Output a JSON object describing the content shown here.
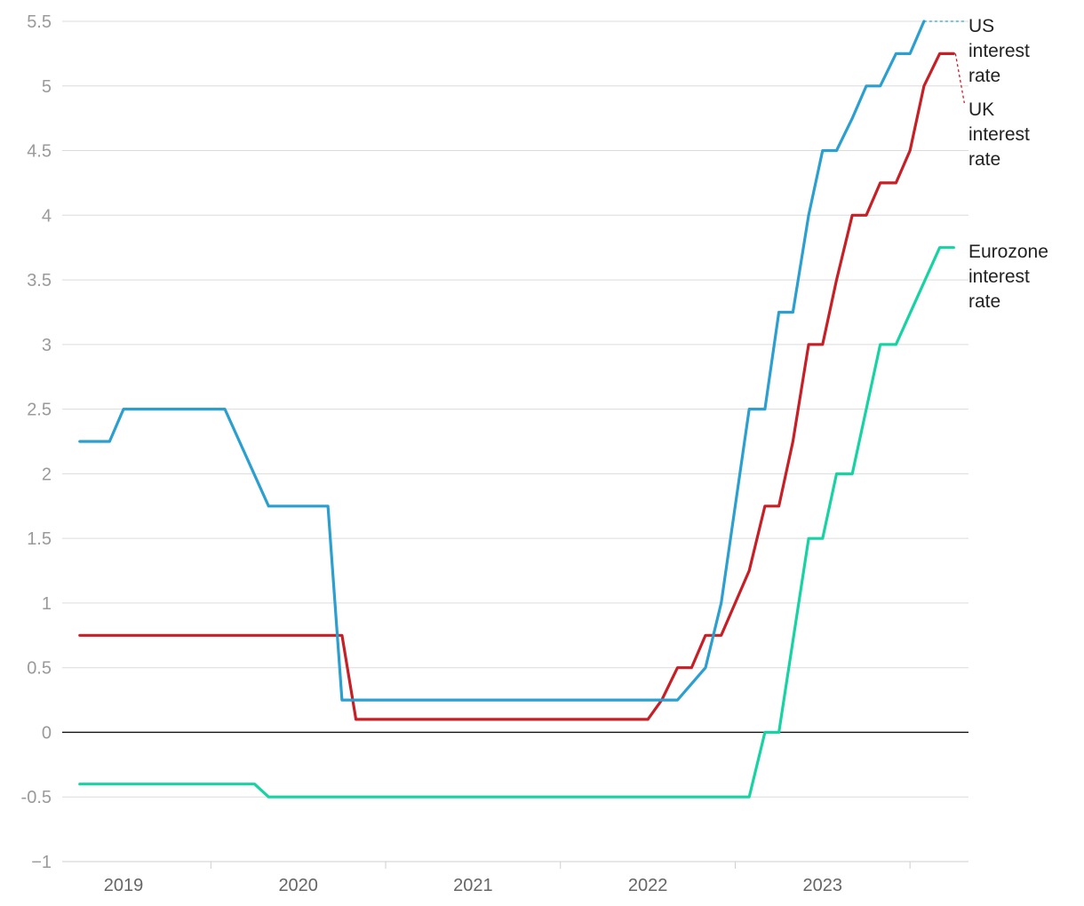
{
  "chart_data": {
    "type": "line",
    "title": "",
    "xlabel": "",
    "ylabel": "",
    "ylim": [
      -1,
      5.5
    ],
    "xlim": [
      2018.74,
      2023.84
    ],
    "y_ticks": [
      "5.5",
      "5",
      "4.5",
      "4",
      "3.5",
      "3",
      "2.5",
      "2",
      "1.5",
      "1",
      "0.5",
      "0",
      "-0.5",
      "−1"
    ],
    "y_tick_values": [
      5.5,
      5,
      4.5,
      4,
      3.5,
      3,
      2.5,
      2,
      1.5,
      1,
      0.5,
      0,
      -0.5,
      -1
    ],
    "x_ticks": [
      "2019",
      "2020",
      "2021",
      "2022",
      "2023"
    ],
    "x_tick_values": [
      2019,
      2020,
      2021,
      2022,
      2023
    ],
    "grid": true,
    "legend": "direct labels at line ends (right)",
    "series": [
      {
        "key": "us",
        "name": "US interest rate",
        "label_lines": [
          "US",
          "interest",
          "rate"
        ],
        "color": "#2b9fcf",
        "x": [
          2018.75,
          2018.92,
          2019.0,
          2019.58,
          2019.83,
          2020.17,
          2020.25,
          2022.17,
          2022.33,
          2022.42,
          2022.58,
          2022.67,
          2022.75,
          2022.83,
          2022.92,
          2023.0,
          2023.08,
          2023.17,
          2023.25,
          2023.33,
          2023.42,
          2023.5,
          2023.58
        ],
        "y": [
          2.25,
          2.25,
          2.5,
          2.5,
          1.75,
          1.75,
          0.25,
          0.25,
          0.5,
          1.0,
          2.5,
          2.5,
          3.25,
          3.25,
          4.0,
          4.5,
          4.5,
          4.75,
          5.0,
          5.0,
          5.25,
          5.25,
          5.5
        ]
      },
      {
        "key": "uk",
        "name": "UK interest rate",
        "label_lines": [
          "UK",
          "interest",
          "rate"
        ],
        "color": "#c62026",
        "x": [
          2018.75,
          2020.17,
          2020.25,
          2020.33,
          2022.0,
          2022.08,
          2022.17,
          2022.25,
          2022.33,
          2022.42,
          2022.58,
          2022.67,
          2022.75,
          2022.83,
          2022.92,
          2023.0,
          2023.08,
          2023.17,
          2023.25,
          2023.33,
          2023.42,
          2023.5,
          2023.58,
          2023.67,
          2023.75
        ],
        "y": [
          0.75,
          0.75,
          0.75,
          0.1,
          0.1,
          0.25,
          0.5,
          0.5,
          0.75,
          0.75,
          1.25,
          1.75,
          1.75,
          2.25,
          3.0,
          3.0,
          3.5,
          4.0,
          4.0,
          4.25,
          4.25,
          4.5,
          5.0,
          5.25,
          5.25
        ]
      },
      {
        "key": "ez",
        "name": "Eurozone interest rate",
        "label_lines": [
          "Eurozone",
          "interest",
          "rate"
        ],
        "color": "#17d3a3",
        "x": [
          2018.75,
          2019.75,
          2019.83,
          2022.58,
          2022.67,
          2022.75,
          2022.92,
          2023.0,
          2023.08,
          2023.17,
          2023.33,
          2023.42,
          2023.67,
          2023.75
        ],
        "y": [
          -0.4,
          -0.4,
          -0.5,
          -0.5,
          0.0,
          0.0,
          1.5,
          1.5,
          2.0,
          2.0,
          3.0,
          3.0,
          3.75,
          3.75
        ]
      }
    ]
  }
}
